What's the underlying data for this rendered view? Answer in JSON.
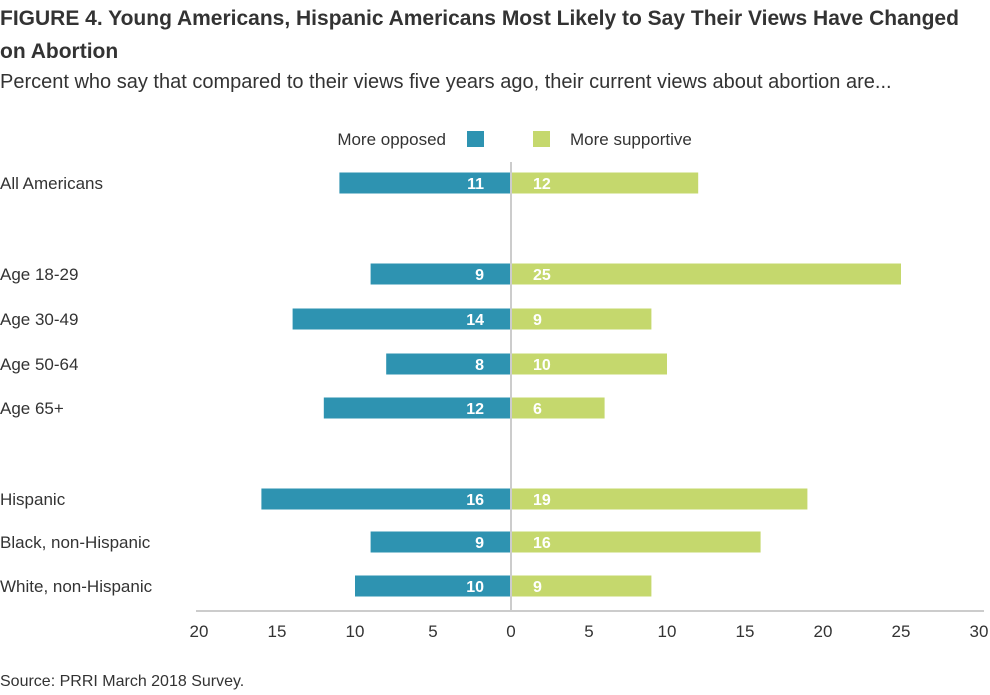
{
  "title": "FIGURE 4.  Young Americans, Hispanic Americans Most Likely to Say Their Views Have Changed on Abortion",
  "subtitle": "Percent who say that compared to their views five years ago, their current views about abortion are...",
  "source": "Source: PRRI March 2018 Survey.",
  "colors": {
    "opposed": "#2e93b1",
    "supportive": "#c5d86d",
    "axis": "#cccccc",
    "text": "#333333"
  },
  "chart_data": {
    "type": "bar",
    "orientation": "horizontal-diverging",
    "categories": [
      "All Americans",
      "Age 18-29",
      "Age 30-49",
      "Age 50-64",
      "Age 65+",
      "Hispanic",
      "Black, non-Hispanic",
      "White, non-Hispanic"
    ],
    "series": [
      {
        "name": "More opposed",
        "direction": "left",
        "color": "#2e93b1",
        "values": [
          11,
          9,
          14,
          8,
          12,
          16,
          9,
          10
        ]
      },
      {
        "name": "More supportive",
        "direction": "right",
        "color": "#c5d86d",
        "values": [
          12,
          25,
          9,
          10,
          6,
          19,
          16,
          9
        ]
      }
    ],
    "x_ticks": [
      "20",
      "15",
      "10",
      "5",
      "0",
      "5",
      "10",
      "15",
      "20",
      "25",
      "30"
    ],
    "xlim": [
      -20,
      30
    ],
    "legend_position": "top",
    "grid": false
  }
}
